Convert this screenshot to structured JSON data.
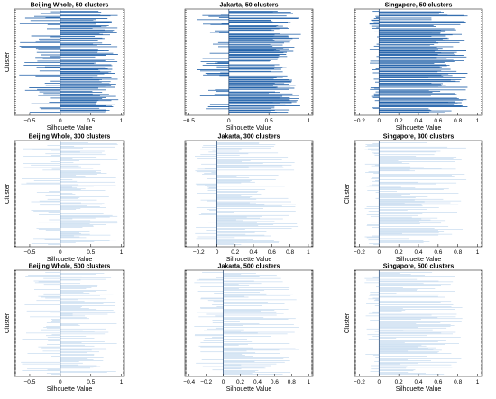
{
  "colors": {
    "background": "#ffffff",
    "axes": "#262626",
    "bars_dense": "#1f5fa8",
    "bars_light": "#8fb8e0",
    "text": "#000000"
  },
  "chart_data": [
    {
      "type": "bar",
      "orientation": "horizontal",
      "title": "Beijing Whole, 50 clusters",
      "xlabel": "Silhouette Value",
      "ylabel": "Cluster",
      "xlim": [
        -0.75,
        1.05
      ],
      "xticks": [
        -0.5,
        0,
        0.5,
        1
      ],
      "xtick_labels": [
        "−0.5",
        "0",
        "0.5",
        "1"
      ],
      "clusters": 50,
      "value_range": [
        -0.7,
        0.95
      ],
      "density": "dense",
      "grid": false
    },
    {
      "type": "bar",
      "orientation": "horizontal",
      "title": "Jakarta, 50 clusters",
      "xlabel": "Silhouette Value",
      "ylabel": "",
      "xlim": [
        -0.55,
        1.05
      ],
      "xticks": [
        -0.5,
        0,
        0.5,
        1
      ],
      "xtick_labels": [
        "−0.5",
        "0",
        "0.5",
        "1"
      ],
      "clusters": 50,
      "value_range": [
        -0.4,
        0.9
      ],
      "density": "dense",
      "grid": false
    },
    {
      "type": "bar",
      "orientation": "horizontal",
      "title": "Singapore, 50 clusters",
      "xlabel": "Silhouette Value",
      "ylabel": "",
      "xlim": [
        -0.25,
        1.05
      ],
      "xticks": [
        -0.2,
        0,
        0.2,
        0.4,
        0.6,
        0.8,
        1
      ],
      "xtick_labels": [
        "−0.2",
        "0",
        "0.2",
        "0.4",
        "0.6",
        "0.8",
        "1"
      ],
      "clusters": 50,
      "value_range": [
        -0.1,
        0.9
      ],
      "density": "dense",
      "grid": false
    },
    {
      "type": "bar",
      "orientation": "horizontal",
      "title": "Beijing Whole, 300 clusters",
      "xlabel": "Silhouette Value",
      "ylabel": "Cluster",
      "xlim": [
        -0.75,
        1.05
      ],
      "xticks": [
        -0.5,
        0,
        0.5,
        1
      ],
      "xtick_labels": [
        "−0.5",
        "0",
        "0.5",
        "1"
      ],
      "clusters": 300,
      "value_range": [
        -0.65,
        0.95
      ],
      "density": "light",
      "grid": false
    },
    {
      "type": "bar",
      "orientation": "horizontal",
      "title": "Jakarta, 300 clusters",
      "xlabel": "Silhouette Value",
      "ylabel": "",
      "xlim": [
        -0.35,
        1.05
      ],
      "xticks": [
        -0.2,
        0,
        0.2,
        0.4,
        0.6,
        0.8,
        1
      ],
      "xtick_labels": [
        "−0.2",
        "0",
        "0.2",
        "0.4",
        "0.6",
        "0.8",
        "1"
      ],
      "clusters": 300,
      "value_range": [
        -0.25,
        0.9
      ],
      "density": "light",
      "grid": false
    },
    {
      "type": "bar",
      "orientation": "horizontal",
      "title": "Singapore, 300 clusters",
      "xlabel": "Silhouette Value",
      "ylabel": "Cluster",
      "xlim": [
        -0.25,
        1.05
      ],
      "xticks": [
        -0.2,
        0,
        0.2,
        0.4,
        0.6,
        0.8,
        1
      ],
      "xtick_labels": [
        "−0.2",
        "0",
        "0.2",
        "0.4",
        "0.6",
        "0.8",
        "1"
      ],
      "clusters": 300,
      "value_range": [
        -0.15,
        0.9
      ],
      "density": "light",
      "grid": false
    },
    {
      "type": "bar",
      "orientation": "horizontal",
      "title": "Beijing Whole, 500 clusters",
      "xlabel": "Silhouette Value",
      "ylabel": "Cluster",
      "xlim": [
        -0.75,
        1.05
      ],
      "xticks": [
        -0.5,
        0,
        0.5,
        1
      ],
      "xtick_labels": [
        "−0.5",
        "0",
        "0.5",
        "1"
      ],
      "clusters": 500,
      "value_range": [
        -0.65,
        0.95
      ],
      "density": "light",
      "grid": false
    },
    {
      "type": "bar",
      "orientation": "horizontal",
      "title": "Jakarta, 500 clusters",
      "xlabel": "Silhouette Value",
      "ylabel": "",
      "xlim": [
        -0.45,
        1.05
      ],
      "xticks": [
        -0.4,
        -0.2,
        0,
        0.2,
        0.4,
        0.6,
        0.8,
        1
      ],
      "xtick_labels": [
        "−0.4",
        "−0.2",
        "0",
        "0.2",
        "0.4",
        "0.6",
        "0.8",
        "1"
      ],
      "clusters": 500,
      "value_range": [
        -0.35,
        0.9
      ],
      "density": "light",
      "grid": false
    },
    {
      "type": "bar",
      "orientation": "horizontal",
      "title": "Singapore, 500 clusters",
      "xlabel": "Silhouette Value",
      "ylabel": "Cluster",
      "xlim": [
        -0.25,
        1.05
      ],
      "xticks": [
        -0.2,
        0,
        0.2,
        0.4,
        0.6,
        0.8,
        1
      ],
      "xtick_labels": [
        "−0.2",
        "0",
        "0.2",
        "0.4",
        "0.6",
        "0.8",
        "1"
      ],
      "clusters": 500,
      "value_range": [
        -0.15,
        0.85
      ],
      "density": "light",
      "grid": false
    }
  ]
}
